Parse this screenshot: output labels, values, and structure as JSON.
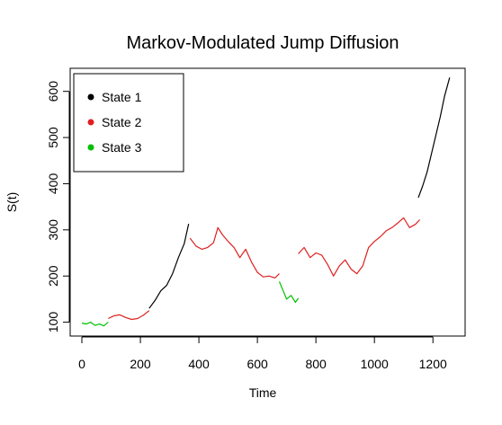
{
  "chart_data": {
    "type": "line",
    "title": "Markov-Modulated Jump Diffusion",
    "xlabel": "Time",
    "ylabel": "S(t)",
    "xlim": [
      -40,
      1310
    ],
    "ylim": [
      70,
      650
    ],
    "xticks": [
      0,
      200,
      400,
      600,
      800,
      1000,
      1200
    ],
    "yticks": [
      100,
      200,
      300,
      400,
      500,
      600
    ],
    "grid": false,
    "legend_position": "top-left",
    "series": [
      {
        "name": "State 1",
        "color": "#000000",
        "segments": [
          {
            "x": [
              230,
              250,
              270,
              290,
              310,
              330,
              350,
              365
            ],
            "y": [
              130,
              147,
              168,
              180,
              205,
              240,
              270,
              313
            ]
          },
          {
            "x": [
              1150,
              1165,
              1180,
              1195,
              1210,
              1225,
              1240,
              1257
            ],
            "y": [
              370,
              395,
              425,
              465,
              505,
              545,
              590,
              630
            ]
          }
        ]
      },
      {
        "name": "State 2",
        "color": "#df2020",
        "segments": [
          {
            "x": [
              90,
              110,
              130,
              150,
              170,
              190,
              210,
              230
            ],
            "y": [
              108,
              114,
              116,
              110,
              106,
              108,
              115,
              125
            ]
          },
          {
            "x": [
              370,
              390,
              410,
              430,
              450,
              465,
              480,
              500,
              520,
              540,
              560,
              580,
              600,
              620,
              640,
              660,
              675
            ],
            "y": [
              282,
              265,
              258,
              262,
              272,
              305,
              290,
              275,
              262,
              240,
              258,
              230,
              208,
              198,
              200,
              196,
              205
            ]
          },
          {
            "x": [
              740,
              760,
              780,
              800,
              820,
              840,
              860,
              880,
              900,
              920,
              940,
              960,
              980,
              1000,
              1020,
              1040,
              1060,
              1080,
              1100,
              1120,
              1140,
              1155
            ],
            "y": [
              248,
              262,
              240,
              250,
              245,
              225,
              200,
              222,
              235,
              215,
              205,
              222,
              262,
              275,
              285,
              298,
              305,
              315,
              326,
              305,
              312,
              322
            ]
          }
        ]
      },
      {
        "name": "State 3",
        "color": "#00c000",
        "segments": [
          {
            "x": [
              0,
              15,
              30,
              45,
              60,
              75,
              90
            ],
            "y": [
              98,
              96,
              100,
              93,
              96,
              92,
              100
            ]
          },
          {
            "x": [
              675,
              690,
              700,
              715,
              730,
              740
            ],
            "y": [
              188,
              165,
              150,
              158,
              143,
              152
            ]
          }
        ]
      }
    ]
  }
}
